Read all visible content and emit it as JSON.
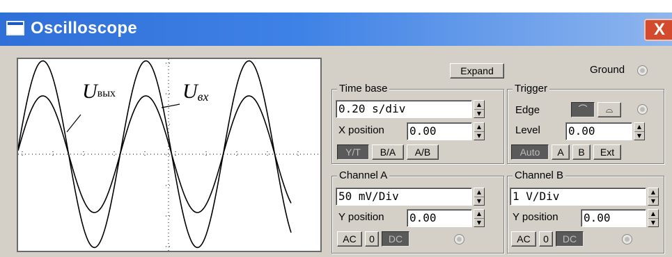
{
  "window": {
    "title": "Oscilloscope",
    "close_glyph": "X",
    "title_color": "#3f82e6",
    "close_color": "#d34b2c"
  },
  "screen": {
    "annotation_out": "U",
    "annotation_out_sub": "вых",
    "annotation_in": "U",
    "annotation_in_sub": "вх",
    "traces": [
      {
        "name": "output",
        "amplitude_div": 3.2
      },
      {
        "name": "input",
        "amplitude_div": 2.0
      }
    ],
    "trace_color": "#000000"
  },
  "controls": {
    "expand_label": "Expand",
    "ground_label": "Ground",
    "timebase": {
      "group_label": "Time base",
      "value": "0.20 s/div",
      "x_position_label": "X position",
      "x_position_value": "0.00",
      "modes": [
        "Y/T",
        "B/A",
        "A/B"
      ],
      "active_mode": "Y/T"
    },
    "trigger": {
      "group_label": "Trigger",
      "edge_label": "Edge",
      "level_label": "Level",
      "level_value": "0.00",
      "sources": [
        "Auto",
        "A",
        "B",
        "Ext"
      ],
      "active_source": "Auto"
    },
    "channel_a": {
      "group_label": "Channel A",
      "value": "50 mV/Div",
      "y_position_label": "Y position",
      "y_position_value": "0.00",
      "coupling": [
        "AC",
        "0",
        "DC"
      ],
      "active_coupling": "DC"
    },
    "channel_b": {
      "group_label": "Channel B",
      "value": "1 V/Div",
      "y_position_label": "Y position",
      "y_position_value": "0.00",
      "coupling": [
        "AC",
        "0",
        "DC"
      ],
      "active_coupling": "DC"
    }
  }
}
